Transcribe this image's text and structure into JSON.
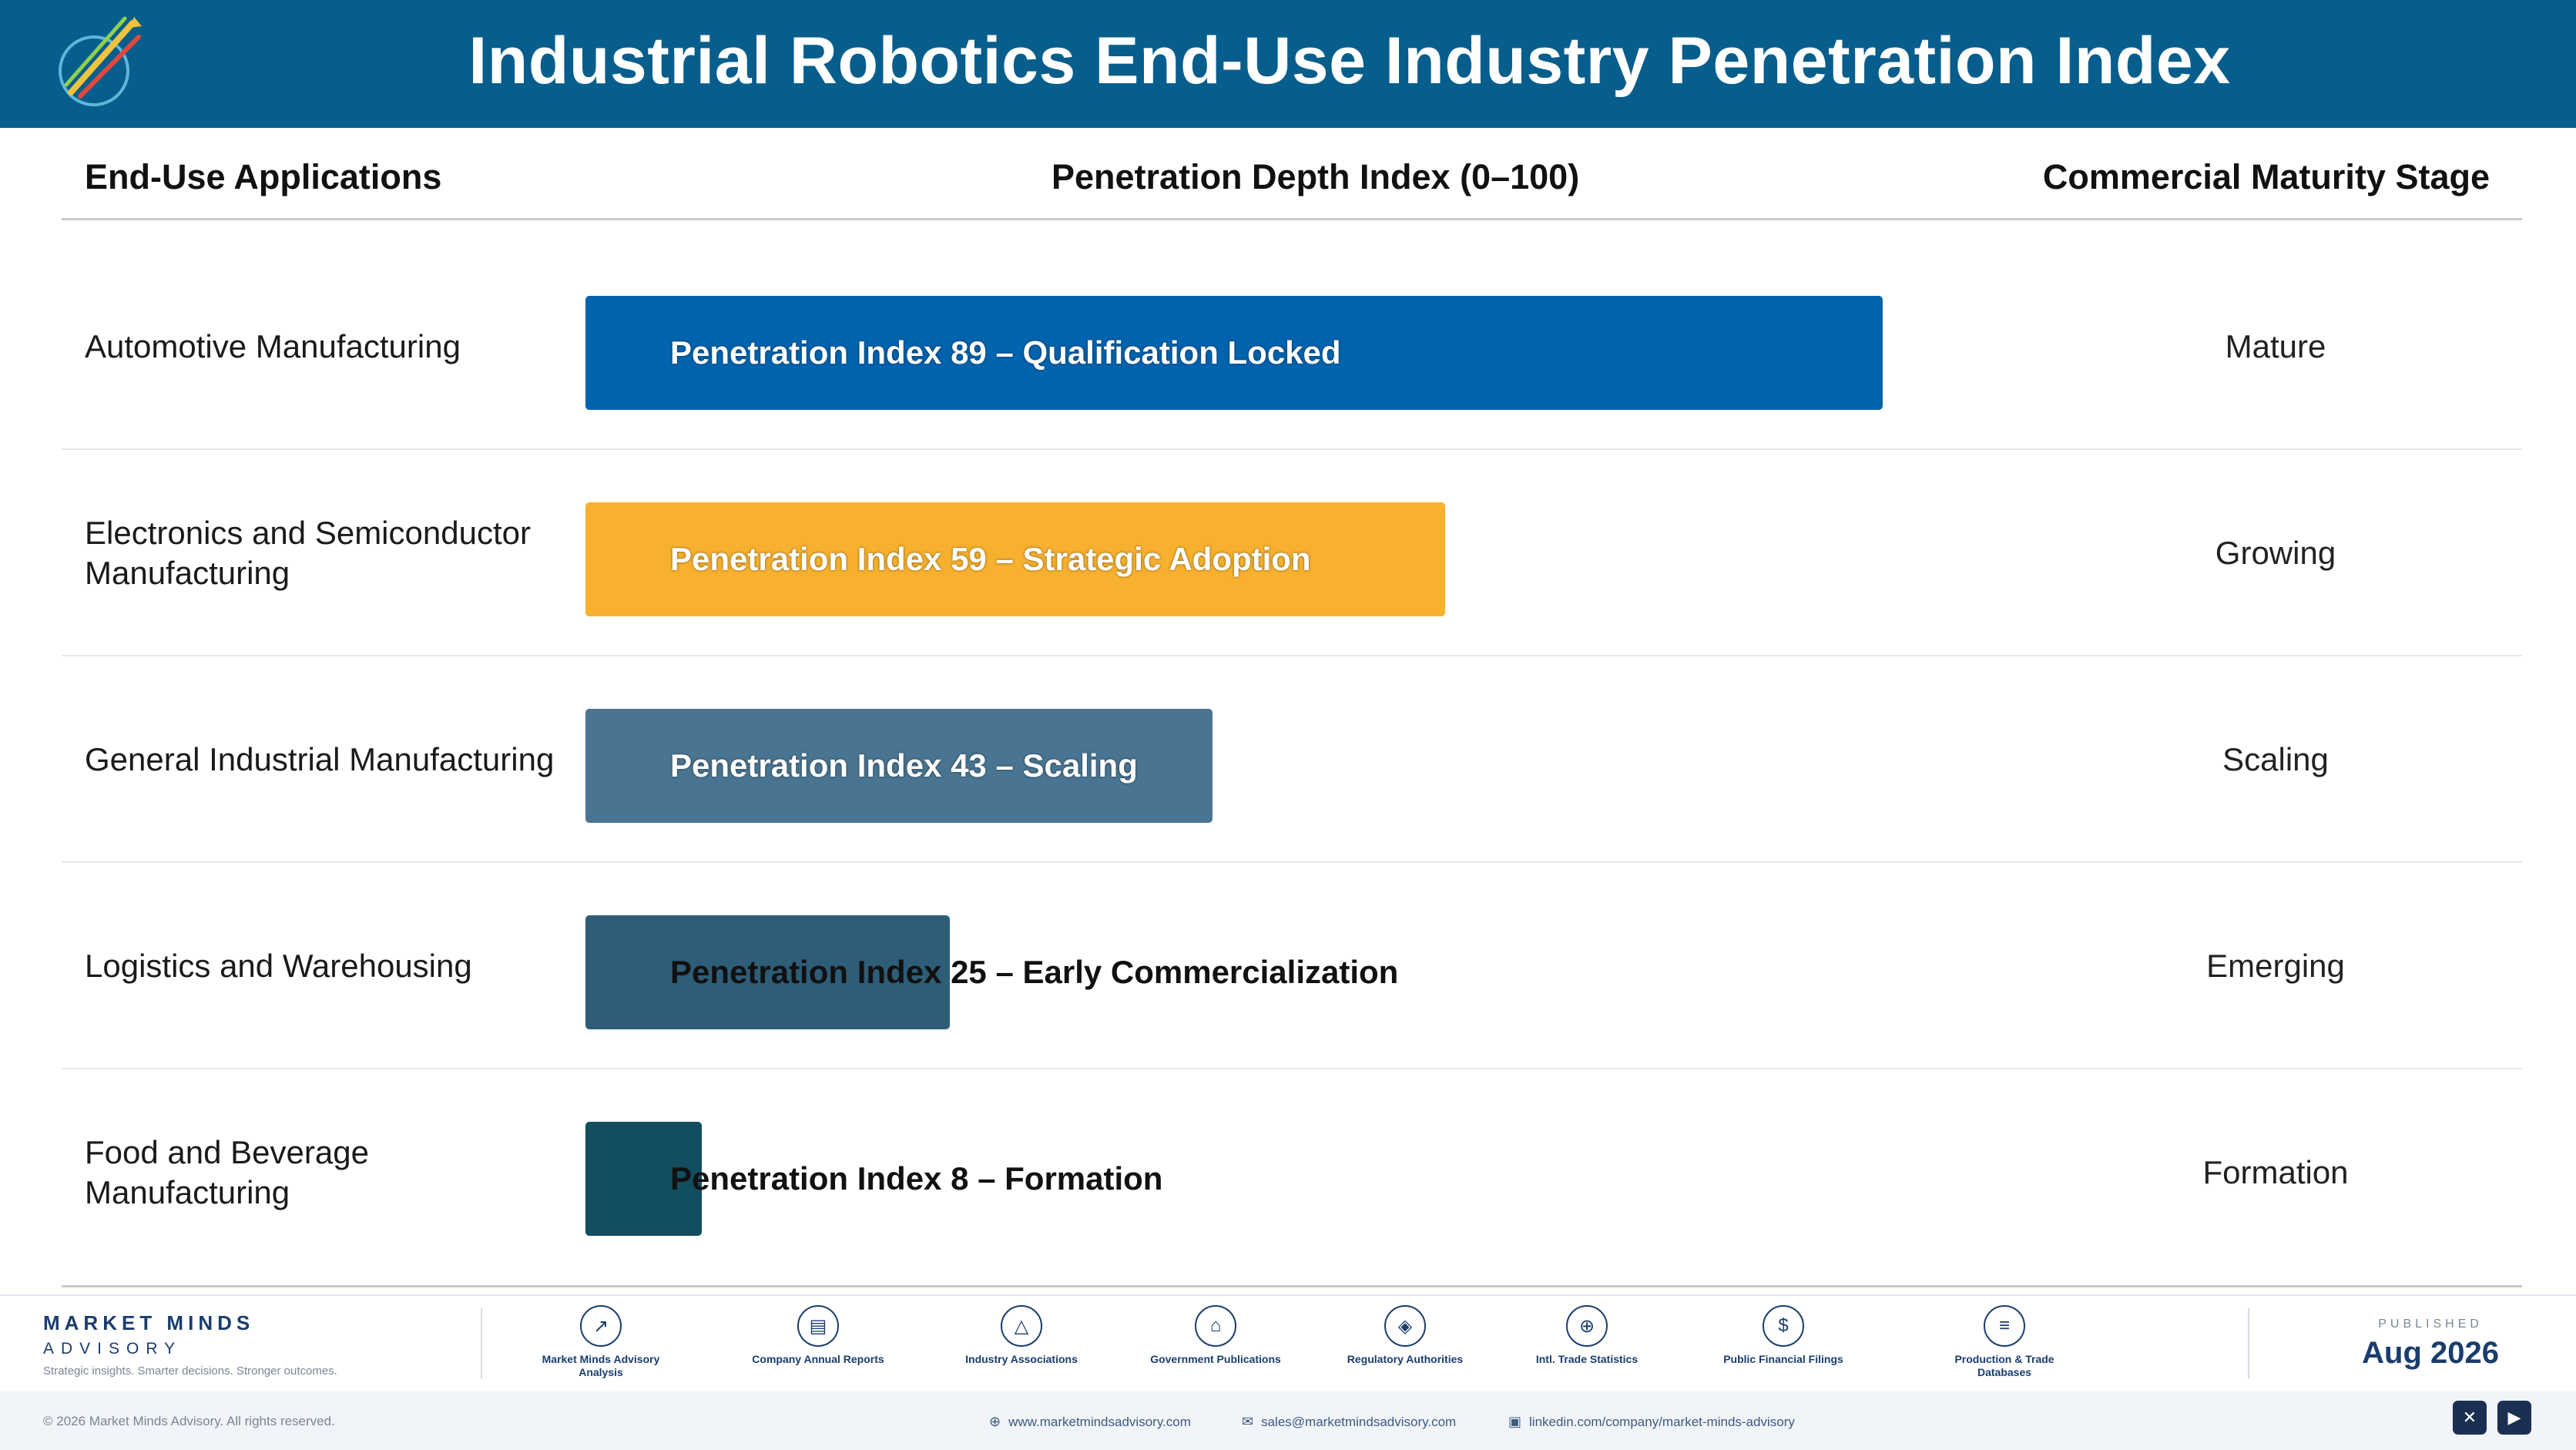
{
  "header": {
    "title": "Industrial Robotics End-Use Industry Penetration Index"
  },
  "columns": {
    "applications": "End-Use Applications",
    "index": "Penetration Depth Index (0–100)",
    "stage": "Commercial Maturity Stage"
  },
  "chart_data": {
    "type": "bar",
    "orientation": "horizontal",
    "title": "Industrial Robotics End-Use Industry Penetration Index",
    "xlim": [
      0,
      100
    ],
    "categories": [
      "Automotive Manufacturing",
      "Electronics and Semiconductor Manufacturing",
      "General Industrial Manufacturing",
      "Logistics and Warehousing",
      "Food and Beverage Manufacturing"
    ],
    "rows": [
      {
        "app": "Automotive Manufacturing",
        "value": 89,
        "label": "Penetration Index 89 – Qualification Locked",
        "stage": "Mature",
        "color": "#0063ad"
      },
      {
        "app": "Electronics and Semiconductor Manufacturing",
        "value": 59,
        "label": "Penetration Index 59 – Strategic Adoption",
        "stage": "Growing",
        "color": "#f7b12e"
      },
      {
        "app": "General Industrial Manufacturing",
        "value": 43,
        "label": "Penetration Index 43 – Scaling",
        "stage": "Scaling",
        "color": "#4a7592"
      },
      {
        "app": "Logistics and Warehousing",
        "value": 25,
        "label": "Penetration Index 25 – Early Commercialization",
        "stage": "Emerging",
        "color": "#2e5d78"
      },
      {
        "app": "Food and Beverage Manufacturing",
        "value": 8,
        "label": "Penetration Index 8 – Formation",
        "stage": "Formation",
        "color": "#124d60"
      }
    ]
  },
  "footer": {
    "brand_name": "MARKET MINDS",
    "brand_sub": "ADVISORY",
    "tagline": "Strategic insights. Smarter decisions. Stronger outcomes.",
    "sources": [
      {
        "label": "Market Minds Advisory Analysis",
        "icon": "chart-line-icon",
        "glyph": "↗"
      },
      {
        "label": "Company Annual Reports",
        "icon": "document-icon",
        "glyph": "▤"
      },
      {
        "label": "Industry Associations",
        "icon": "network-icon",
        "glyph": "△"
      },
      {
        "label": "Government Publications",
        "icon": "government-building-icon",
        "glyph": "⌂"
      },
      {
        "label": "Regulatory Authorities",
        "icon": "shield-icon",
        "glyph": "◈"
      },
      {
        "label": "Intl. Trade Statistics",
        "icon": "globe-icon",
        "glyph": "⊕"
      },
      {
        "label": "Public Financial Filings",
        "icon": "coin-icon",
        "glyph": "$"
      },
      {
        "label": "Production & Trade Databases",
        "icon": "database-icon",
        "glyph": "≡"
      }
    ],
    "published_label": "PUBLISHED",
    "published_date": "Aug 2026",
    "copyright": "© 2026 Market Minds Advisory. All rights reserved.",
    "website": "www.marketmindsadvisory.com",
    "email": "sales@marketmindsadvisory.com",
    "linkedin": "linkedin.com/company/market-minds-advisory"
  }
}
